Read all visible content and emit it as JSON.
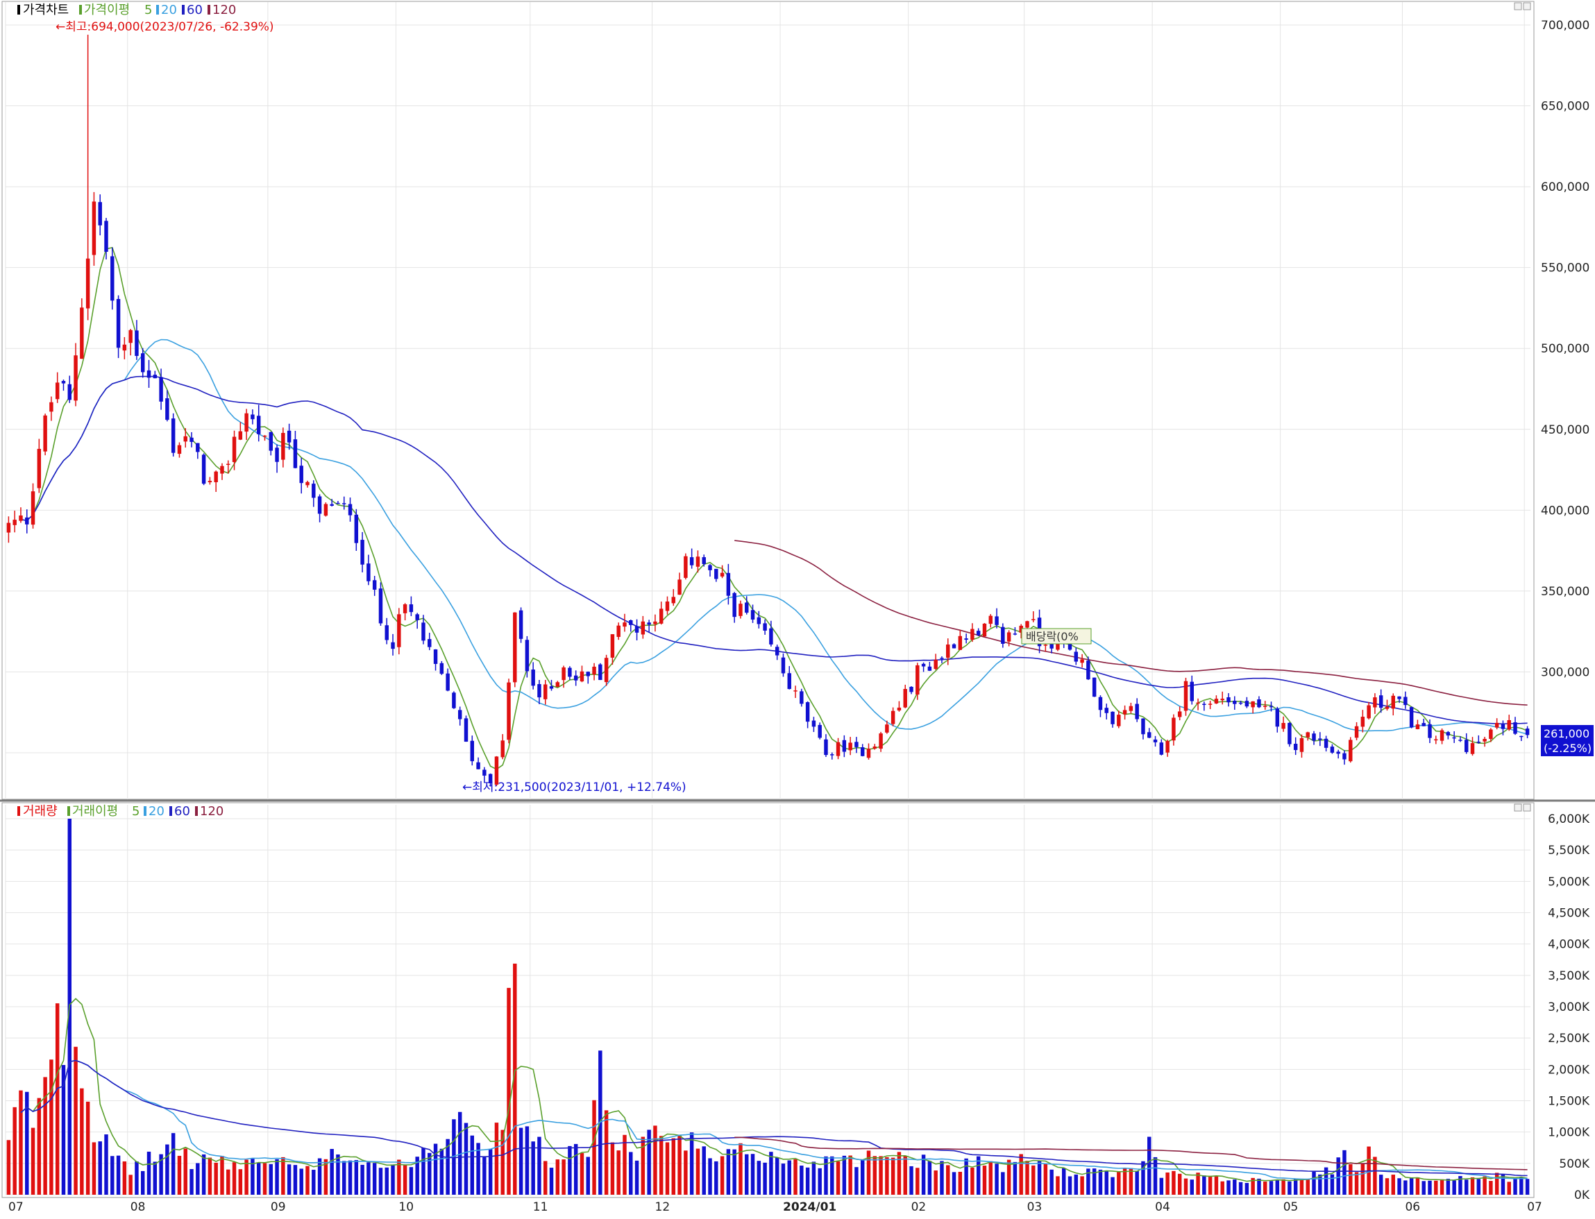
{
  "price_panel": {
    "legend": {
      "title": "가격차트",
      "ma_label": "가격이평",
      "periods": [
        "5",
        "20",
        "60",
        "120"
      ],
      "colors": {
        "5": "#5aa02c",
        "20": "#3aa0e0",
        "60": "#2020c0",
        "120": "#8b2040"
      }
    },
    "high_annotation": "←최고:694,000(2023/07/26, -62.39%)",
    "low_annotation": "←최저:231,500(2023/11/01, +12.74%)",
    "current_price": "261,000",
    "current_change": "(-2.25%)",
    "event_label": "배당락(0%",
    "y_ticks": [
      "700,000",
      "650,000",
      "600,000",
      "550,000",
      "500,000",
      "450,000",
      "400,000",
      "350,000",
      "300,000"
    ]
  },
  "volume_panel": {
    "legend": {
      "title": "거래량",
      "ma_label": "거래이평",
      "periods": [
        "5",
        "20",
        "60",
        "120"
      ]
    },
    "y_ticks": [
      "6,000K",
      "5,500K",
      "5,000K",
      "4,500K",
      "4,000K",
      "3,500K",
      "3,000K",
      "2,500K",
      "2,000K",
      "1,500K",
      "1,000K",
      "500K",
      "0K"
    ]
  },
  "x_axis": {
    "labels": [
      "07",
      "08",
      "09",
      "10",
      "11",
      "12",
      "2024/01",
      "02",
      "03",
      "04",
      "05",
      "06",
      "07"
    ]
  },
  "colors": {
    "up": "#e01010",
    "down": "#1010d0",
    "grid": "#e4e4e4"
  },
  "chart_data": {
    "type": "candlestick",
    "price_range": [
      223000,
      712000
    ],
    "volume_range": [
      0,
      6000
    ],
    "volume_unit": "K",
    "ma_periods": [
      5,
      20,
      60,
      120
    ],
    "extremes": {
      "high": {
        "value": 694000,
        "date": "2023/07/26",
        "change": "-62.39%"
      },
      "low": {
        "value": 231500,
        "date": "2023/11/01",
        "change": "+12.74%"
      }
    },
    "last": {
      "close": 261000,
      "change": "-2.25%"
    },
    "anchors": [
      [
        0,
        390000
      ],
      [
        3,
        395000
      ],
      [
        5,
        440000
      ],
      [
        8,
        480000
      ],
      [
        10,
        465000
      ],
      [
        12,
        530000
      ],
      [
        14,
        590000
      ],
      [
        16,
        560000
      ],
      [
        18,
        495000
      ],
      [
        20,
        510000
      ],
      [
        22,
        490000
      ],
      [
        24,
        480000
      ],
      [
        27,
        440000
      ],
      [
        29,
        445000
      ],
      [
        31,
        430000
      ],
      [
        33,
        415000
      ],
      [
        35,
        420000
      ],
      [
        37,
        445000
      ],
      [
        39,
        460000
      ],
      [
        41,
        450000
      ],
      [
        43,
        430000
      ],
      [
        46,
        445000
      ],
      [
        48,
        420000
      ],
      [
        51,
        395000
      ],
      [
        53,
        405000
      ],
      [
        55,
        400000
      ],
      [
        57,
        385000
      ],
      [
        59,
        360000
      ],
      [
        61,
        330000
      ],
      [
        63,
        320000
      ],
      [
        65,
        340000
      ],
      [
        67,
        330000
      ],
      [
        69,
        310000
      ],
      [
        71,
        295000
      ],
      [
        73,
        280000
      ],
      [
        75,
        255000
      ],
      [
        77,
        240000
      ],
      [
        79,
        235000
      ],
      [
        81,
        255000
      ],
      [
        83,
        335000
      ],
      [
        85,
        300000
      ],
      [
        87,
        285000
      ],
      [
        89,
        290000
      ],
      [
        91,
        305000
      ],
      [
        93,
        295000
      ],
      [
        95,
        300000
      ],
      [
        97,
        300000
      ],
      [
        99,
        320000
      ],
      [
        101,
        335000
      ],
      [
        103,
        325000
      ],
      [
        105,
        335000
      ],
      [
        107,
        335000
      ],
      [
        109,
        345000
      ],
      [
        111,
        365000
      ],
      [
        113,
        375000
      ],
      [
        115,
        360000
      ],
      [
        117,
        355000
      ],
      [
        119,
        340000
      ],
      [
        121,
        335000
      ],
      [
        123,
        325000
      ],
      [
        125,
        315000
      ],
      [
        127,
        300000
      ],
      [
        129,
        285000
      ],
      [
        131,
        270000
      ],
      [
        133,
        255000
      ],
      [
        135,
        250000
      ],
      [
        137,
        255000
      ],
      [
        139,
        250000
      ],
      [
        141,
        255000
      ],
      [
        143,
        260000
      ],
      [
        145,
        275000
      ],
      [
        147,
        285000
      ],
      [
        149,
        300000
      ],
      [
        151,
        305000
      ],
      [
        153,
        310000
      ],
      [
        155,
        320000
      ],
      [
        157,
        325000
      ],
      [
        159,
        320000
      ],
      [
        161,
        330000
      ],
      [
        163,
        320000
      ],
      [
        165,
        325000
      ],
      [
        167,
        335000
      ],
      [
        169,
        320000
      ],
      [
        171,
        320000
      ],
      [
        173,
        315000
      ],
      [
        175,
        310000
      ],
      [
        177,
        300000
      ],
      [
        179,
        275000
      ],
      [
        181,
        265000
      ],
      [
        183,
        280000
      ],
      [
        185,
        270000
      ],
      [
        187,
        255000
      ],
      [
        189,
        250000
      ],
      [
        191,
        270000
      ],
      [
        193,
        290000
      ],
      [
        195,
        280000
      ],
      [
        197,
        280000
      ],
      [
        199,
        285000
      ],
      [
        201,
        280000
      ],
      [
        203,
        280000
      ],
      [
        205,
        275000
      ],
      [
        207,
        275000
      ],
      [
        209,
        265000
      ],
      [
        211,
        255000
      ],
      [
        213,
        260000
      ],
      [
        215,
        260000
      ],
      [
        217,
        250000
      ],
      [
        219,
        250000
      ],
      [
        221,
        265000
      ],
      [
        223,
        280000
      ],
      [
        225,
        280000
      ],
      [
        227,
        285000
      ],
      [
        229,
        275000
      ],
      [
        231,
        265000
      ],
      [
        233,
        260000
      ],
      [
        235,
        260000
      ],
      [
        237,
        258000
      ],
      [
        239,
        255000
      ],
      [
        241,
        255000
      ],
      [
        243,
        262000
      ],
      [
        245,
        268000
      ],
      [
        247,
        266000
      ],
      [
        249,
        261000
      ]
    ],
    "volume_anchors": [
      [
        0,
        800
      ],
      [
        2,
        1600
      ],
      [
        4,
        1200
      ],
      [
        6,
        2000
      ],
      [
        8,
        3000
      ],
      [
        9,
        2600
      ],
      [
        10,
        6000
      ],
      [
        11,
        3100
      ],
      [
        12,
        1900
      ],
      [
        14,
        1100
      ],
      [
        16,
        800
      ],
      [
        18,
        500
      ],
      [
        20,
        400
      ],
      [
        22,
        500
      ],
      [
        25,
        650
      ],
      [
        27,
        900
      ],
      [
        30,
        500
      ],
      [
        33,
        600
      ],
      [
        36,
        450
      ],
      [
        40,
        550
      ],
      [
        45,
        500
      ],
      [
        50,
        350
      ],
      [
        53,
        800
      ],
      [
        56,
        600
      ],
      [
        60,
        500
      ],
      [
        64,
        450
      ],
      [
        68,
        700
      ],
      [
        72,
        1000
      ],
      [
        74,
        1700
      ],
      [
        76,
        1100
      ],
      [
        79,
        600
      ],
      [
        81,
        1300
      ],
      [
        82,
        3300
      ],
      [
        83,
        3100
      ],
      [
        84,
        1300
      ],
      [
        86,
        900
      ],
      [
        88,
        600
      ],
      [
        90,
        500
      ],
      [
        92,
        700
      ],
      [
        95,
        600
      ],
      [
        97,
        2300
      ],
      [
        98,
        1300
      ],
      [
        100,
        900
      ],
      [
        103,
        600
      ],
      [
        105,
        1200
      ],
      [
        108,
        700
      ],
      [
        110,
        800
      ],
      [
        112,
        900
      ],
      [
        115,
        500
      ],
      [
        118,
        600
      ],
      [
        121,
        700
      ],
      [
        125,
        600
      ],
      [
        128,
        500
      ],
      [
        131,
        500
      ],
      [
        134,
        550
      ],
      [
        137,
        650
      ],
      [
        140,
        550
      ],
      [
        143,
        700
      ],
      [
        146,
        650
      ],
      [
        149,
        550
      ],
      [
        152,
        500
      ],
      [
        155,
        450
      ],
      [
        158,
        550
      ],
      [
        161,
        500
      ],
      [
        164,
        450
      ],
      [
        167,
        600
      ],
      [
        170,
        450
      ],
      [
        173,
        350
      ],
      [
        176,
        350
      ],
      [
        179,
        350
      ],
      [
        182,
        300
      ],
      [
        185,
        450
      ],
      [
        187,
        800
      ],
      [
        189,
        350
      ],
      [
        192,
        350
      ],
      [
        195,
        300
      ],
      [
        198,
        250
      ],
      [
        201,
        250
      ],
      [
        205,
        250
      ],
      [
        208,
        250
      ],
      [
        211,
        280
      ],
      [
        214,
        300
      ],
      [
        217,
        400
      ],
      [
        219,
        600
      ],
      [
        221,
        400
      ],
      [
        223,
        650
      ],
      [
        225,
        350
      ],
      [
        228,
        300
      ],
      [
        232,
        250
      ],
      [
        236,
        250
      ],
      [
        240,
        250
      ],
      [
        244,
        300
      ],
      [
        247,
        250
      ],
      [
        249,
        220
      ]
    ]
  }
}
